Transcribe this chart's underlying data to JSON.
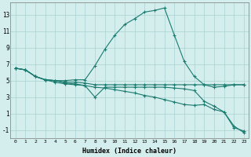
{
  "xlabel": "Humidex (Indice chaleur)",
  "bg_color": "#d4eeee",
  "grid_color": "#aad0d0",
  "line_color": "#1a7a6e",
  "xlim": [
    -0.5,
    23.5
  ],
  "ylim": [
    -2.0,
    14.5
  ],
  "yticks": [
    -1,
    1,
    3,
    5,
    7,
    9,
    11,
    13
  ],
  "xticks": [
    0,
    1,
    2,
    3,
    4,
    5,
    6,
    7,
    8,
    9,
    10,
    11,
    12,
    13,
    14,
    15,
    16,
    17,
    18,
    19,
    20,
    21,
    22,
    23
  ],
  "lines": [
    {
      "x": [
        0,
        1,
        2,
        3,
        4,
        5,
        6,
        7,
        8,
        9,
        10,
        11,
        12,
        13,
        14,
        15,
        16,
        17,
        18,
        19,
        20,
        21,
        22,
        23
      ],
      "y": [
        6.5,
        6.3,
        5.5,
        5.1,
        5.0,
        5.0,
        5.1,
        5.1,
        6.8,
        8.8,
        10.5,
        11.8,
        12.5,
        13.3,
        13.5,
        13.8,
        10.5,
        7.3,
        5.5,
        4.5,
        4.2,
        4.3,
        4.5,
        4.5
      ]
    },
    {
      "x": [
        0,
        1,
        2,
        3,
        4,
        5,
        6,
        7,
        8,
        9,
        10,
        11,
        12,
        13,
        14,
        15,
        16,
        17,
        18,
        19,
        20,
        21,
        22,
        23
      ],
      "y": [
        6.5,
        6.3,
        5.5,
        5.1,
        5.0,
        4.8,
        4.8,
        4.7,
        4.5,
        4.5,
        4.5,
        4.5,
        4.5,
        4.5,
        4.5,
        4.5,
        4.5,
        4.5,
        4.5,
        4.5,
        4.5,
        4.5,
        4.5,
        4.5
      ]
    },
    {
      "x": [
        0,
        1,
        2,
        3,
        4,
        5,
        6,
        7,
        8,
        9,
        10,
        11,
        12,
        13,
        14,
        15,
        16,
        17,
        18,
        19,
        20,
        21,
        22,
        23
      ],
      "y": [
        6.5,
        6.3,
        5.5,
        5.1,
        5.0,
        4.7,
        4.6,
        4.4,
        4.2,
        4.1,
        3.9,
        3.7,
        3.5,
        3.2,
        3.0,
        2.7,
        2.4,
        2.1,
        2.0,
        2.1,
        1.5,
        1.2,
        -0.5,
        -1.3
      ]
    },
    {
      "x": [
        0,
        1,
        2,
        3,
        4,
        5,
        6,
        7,
        8,
        9,
        10,
        11,
        12,
        13,
        14,
        15,
        16,
        17,
        18,
        19,
        20,
        21,
        22,
        23
      ],
      "y": [
        6.5,
        6.3,
        5.5,
        5.1,
        4.8,
        4.6,
        4.5,
        4.4,
        3.0,
        4.2,
        4.2,
        4.2,
        4.2,
        4.2,
        4.2,
        4.2,
        4.1,
        4.0,
        3.8,
        2.5,
        1.9,
        1.2,
        -0.7,
        -1.1
      ]
    }
  ]
}
